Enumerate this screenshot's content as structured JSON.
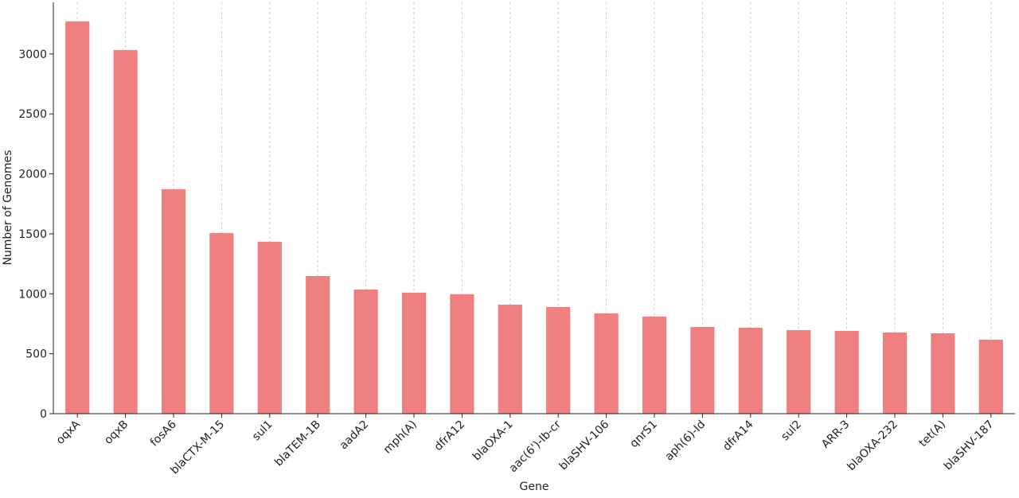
{
  "chart_data": {
    "type": "bar",
    "x_label": "Gene",
    "y_label": "Number of Genomes",
    "categories": [
      "oqxA",
      "oqxB",
      "fosA6",
      "blaCTX-M-15",
      "sul1",
      "blaTEM-1B",
      "aadA2",
      "mph(A)",
      "dfrA12",
      "blaOXA-1",
      "aac(6')-Ib-cr",
      "blaSHV-106",
      "qnrS1",
      "aph(6)-Id",
      "dfrA14",
      "sul2",
      "ARR-3",
      "blaOXA-232",
      "tet(A)",
      "blaSHV-187"
    ],
    "values": [
      3272,
      3033,
      1872,
      1507,
      1434,
      1148,
      1035,
      1009,
      996,
      909,
      889,
      836,
      810,
      723,
      717,
      697,
      690,
      677,
      670,
      617
    ],
    "color": "#f08080",
    "ylim": [
      0,
      3430
    ],
    "yticks": [
      0,
      500,
      1000,
      1500,
      2000,
      2500,
      3000
    ],
    "grid": "x"
  }
}
